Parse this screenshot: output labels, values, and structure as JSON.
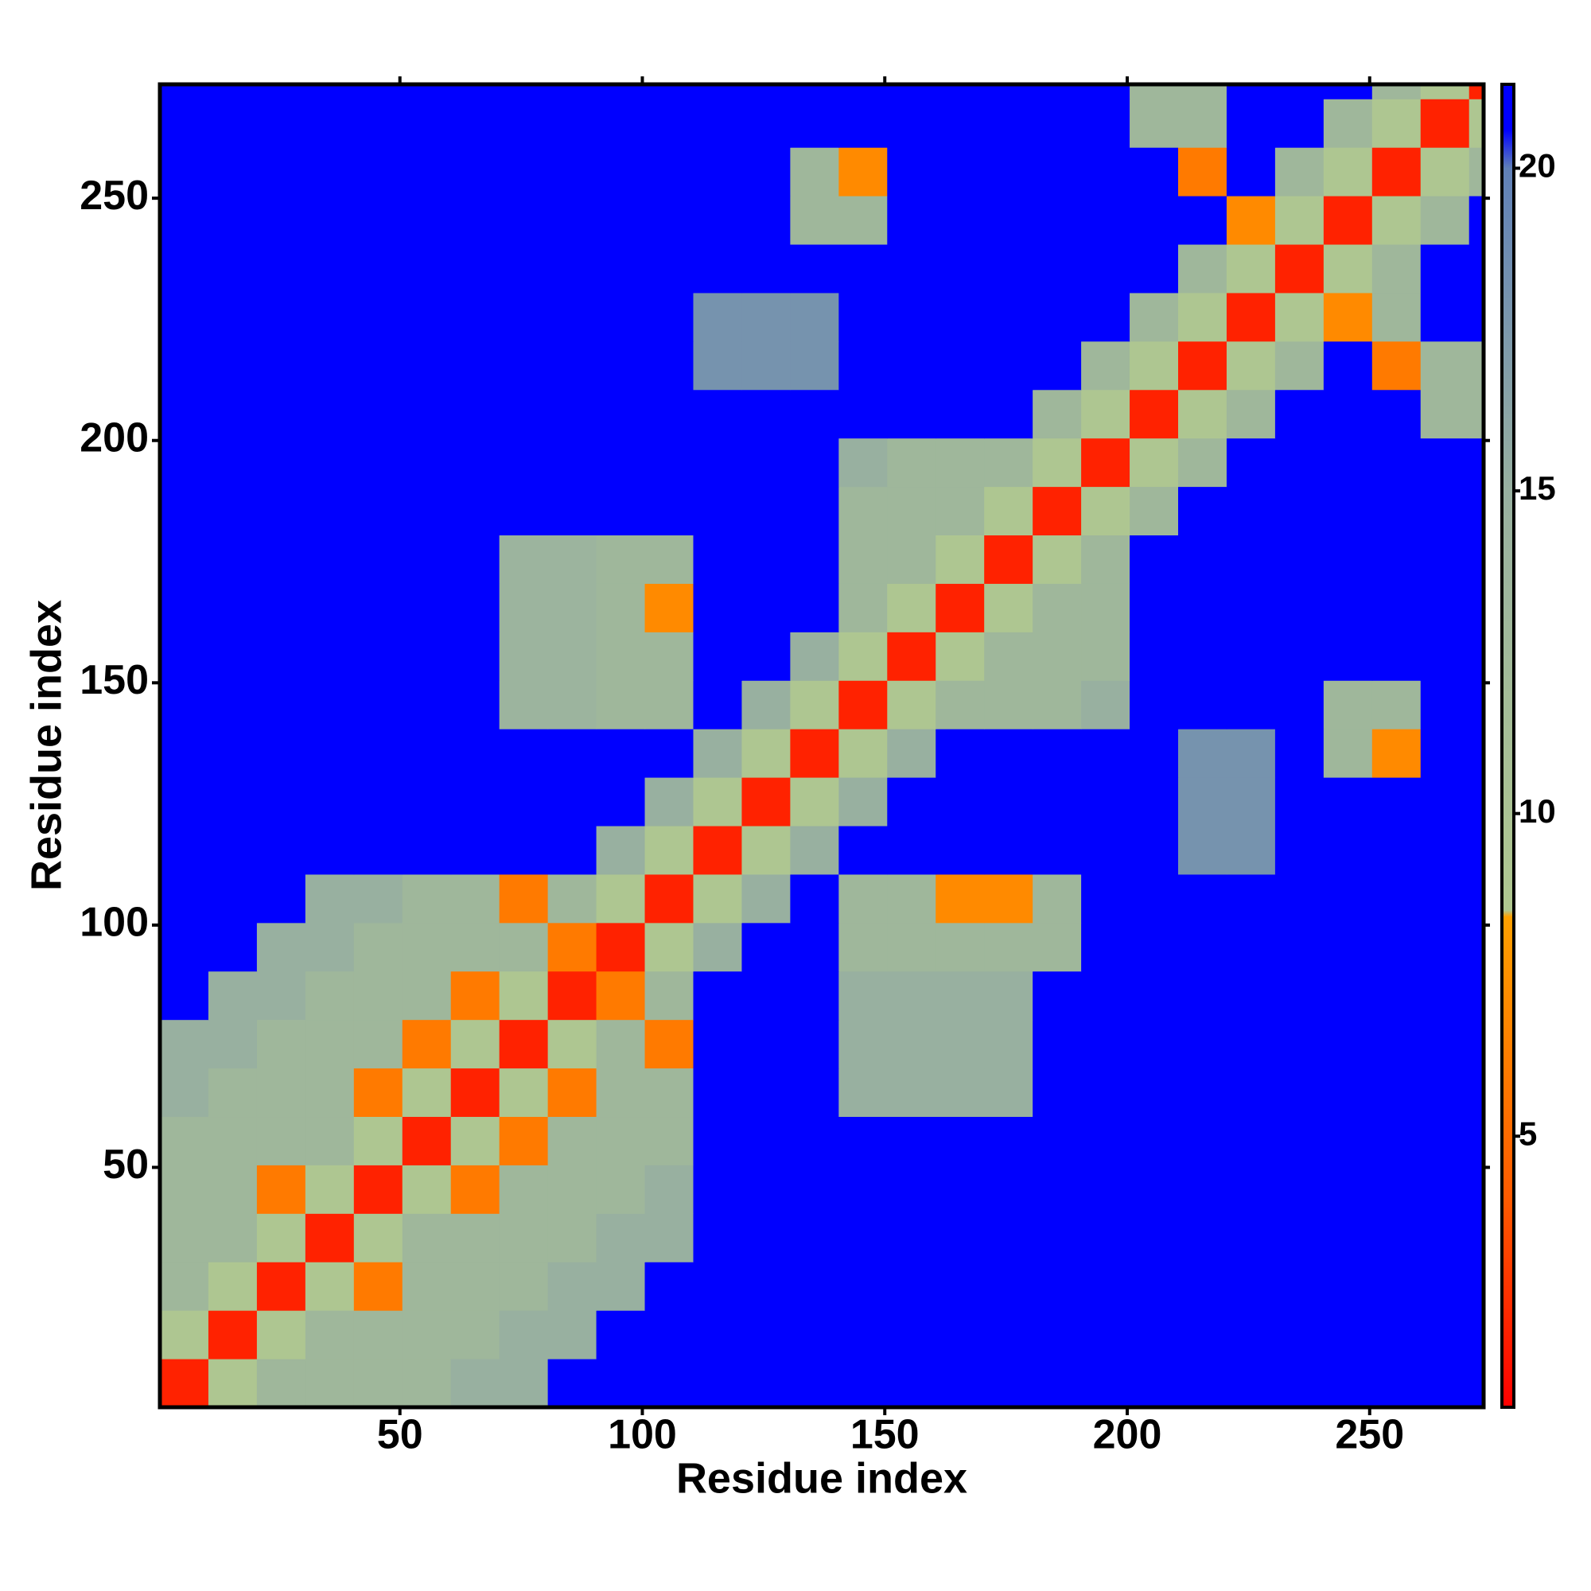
{
  "chart_data": {
    "type": "heatmap",
    "xlabel": "Residue index",
    "ylabel": "Residue index",
    "xlim": [
      0.5,
      273.5
    ],
    "ylim": [
      0.5,
      273.5
    ],
    "xticks": [
      50,
      100,
      150,
      200,
      250
    ],
    "yticks": [
      50,
      100,
      150,
      200,
      250
    ],
    "zlim": [
      0.8,
      21.3
    ],
    "zticks": [
      5,
      10,
      15,
      20
    ],
    "colorscale": [
      [
        0.8,
        "#ff0000"
      ],
      [
        4,
        "#ff5a00"
      ],
      [
        8.4,
        "#ffa000"
      ],
      [
        8.5,
        "#b0c890"
      ],
      [
        15,
        "#98b0a0"
      ],
      [
        20,
        "#6080b8"
      ],
      [
        20.6,
        "#0000ff"
      ],
      [
        21.3,
        "#0000ff"
      ]
    ],
    "xbins": [
      0.5,
      10.5,
      20.5,
      30.5,
      40.5,
      50.5,
      60.5,
      70.5,
      80.5,
      90.5,
      100.5,
      110.5,
      120.5,
      130.5,
      140.5,
      150.5,
      160.5,
      170.5,
      180.5,
      190.5,
      200.5,
      210.5,
      220.5,
      230.5,
      240.5,
      250.5,
      260.5,
      270.5,
      273.5
    ],
    "ybins": [
      0.5,
      10.5,
      20.5,
      30.5,
      40.5,
      50.5,
      60.5,
      70.5,
      80.5,
      90.5,
      100.5,
      110.5,
      120.5,
      130.5,
      140.5,
      150.5,
      160.5,
      170.5,
      180.5,
      190.5,
      200.5,
      210.5,
      220.5,
      230.5,
      240.5,
      250.5,
      260.5,
      270.5,
      273.5
    ],
    "z": [
      [
        2,
        9,
        13,
        13,
        13,
        13,
        15,
        15,
        21,
        21,
        21,
        21,
        21,
        21,
        21,
        21,
        21,
        21,
        21,
        21,
        21,
        21,
        21,
        21,
        21,
        21,
        21,
        21
      ],
      [
        9,
        2,
        9,
        13,
        13,
        13,
        13,
        15,
        15,
        21,
        21,
        21,
        21,
        21,
        21,
        21,
        21,
        21,
        21,
        21,
        21,
        21,
        21,
        21,
        21,
        21,
        21,
        21
      ],
      [
        13,
        9,
        2,
        9,
        6,
        13,
        13,
        13,
        15,
        15,
        21,
        21,
        21,
        21,
        21,
        21,
        21,
        21,
        21,
        21,
        21,
        21,
        21,
        21,
        21,
        21,
        21,
        21
      ],
      [
        13,
        13,
        9,
        2,
        9,
        13,
        13,
        13,
        13,
        15,
        15,
        21,
        21,
        21,
        21,
        21,
        21,
        21,
        21,
        21,
        21,
        21,
        21,
        21,
        21,
        21,
        21,
        21
      ],
      [
        13,
        13,
        6,
        9,
        2,
        9,
        6,
        13,
        13,
        13,
        15,
        21,
        21,
        21,
        21,
        21,
        21,
        21,
        21,
        21,
        21,
        21,
        21,
        21,
        21,
        21,
        21,
        21
      ],
      [
        13,
        13,
        13,
        13,
        9,
        2,
        9,
        6,
        13,
        13,
        13,
        21,
        21,
        21,
        21,
        21,
        21,
        21,
        21,
        21,
        21,
        21,
        21,
        21,
        21,
        21,
        21,
        21
      ],
      [
        15,
        13,
        13,
        13,
        6,
        9,
        2,
        9,
        6,
        13,
        13,
        21,
        21,
        21,
        15,
        15,
        15,
        15,
        21,
        21,
        21,
        21,
        21,
        21,
        21,
        21,
        21,
        21
      ],
      [
        15,
        15,
        13,
        13,
        13,
        6,
        9,
        2,
        9,
        13,
        6,
        21,
        21,
        21,
        15,
        15,
        15,
        15,
        21,
        21,
        21,
        21,
        21,
        21,
        21,
        21,
        21,
        21
      ],
      [
        21,
        15,
        15,
        13,
        13,
        13,
        6,
        9,
        2,
        6,
        13,
        21,
        21,
        21,
        15,
        15,
        15,
        15,
        21,
        21,
        21,
        21,
        21,
        21,
        21,
        21,
        21,
        21
      ],
      [
        21,
        21,
        15,
        15,
        13,
        13,
        13,
        13,
        6,
        2,
        9,
        15,
        21,
        21,
        13,
        13,
        13,
        13,
        13,
        21,
        21,
        21,
        21,
        21,
        21,
        21,
        21,
        21
      ],
      [
        21,
        21,
        21,
        15,
        15,
        13,
        13,
        6,
        13,
        9,
        2,
        9,
        15,
        21,
        13,
        13,
        7,
        7,
        13,
        21,
        21,
        21,
        21,
        21,
        21,
        21,
        21,
        21
      ],
      [
        21,
        21,
        21,
        21,
        21,
        21,
        21,
        21,
        21,
        15,
        9,
        2,
        9,
        15,
        21,
        21,
        21,
        21,
        21,
        21,
        21,
        18,
        18,
        21,
        21,
        21,
        21,
        21
      ],
      [
        21,
        21,
        21,
        21,
        21,
        21,
        21,
        21,
        21,
        21,
        15,
        9,
        2,
        9,
        15,
        21,
        21,
        21,
        21,
        21,
        21,
        18,
        18,
        21,
        21,
        21,
        21,
        21
      ],
      [
        21,
        21,
        21,
        21,
        21,
        21,
        21,
        21,
        21,
        21,
        21,
        15,
        9,
        2,
        9,
        15,
        21,
        21,
        21,
        21,
        21,
        18,
        18,
        21,
        13,
        7,
        21,
        21
      ],
      [
        21,
        21,
        21,
        21,
        21,
        21,
        21,
        14,
        14,
        13,
        13,
        21,
        15,
        9,
        2,
        9,
        13,
        13,
        13,
        15,
        21,
        21,
        21,
        21,
        13,
        13,
        21,
        21
      ],
      [
        21,
        21,
        21,
        21,
        21,
        21,
        21,
        14,
        14,
        13,
        13,
        21,
        21,
        15,
        9,
        2,
        9,
        13,
        13,
        13,
        21,
        21,
        21,
        21,
        21,
        21,
        21,
        21
      ],
      [
        21,
        21,
        21,
        21,
        21,
        21,
        21,
        14,
        14,
        13,
        7,
        21,
        21,
        21,
        13,
        9,
        2,
        9,
        13,
        13,
        21,
        21,
        21,
        21,
        21,
        21,
        21,
        21
      ],
      [
        21,
        21,
        21,
        21,
        21,
        21,
        21,
        14,
        14,
        13,
        13,
        21,
        21,
        21,
        13,
        13,
        9,
        2,
        9,
        13,
        21,
        21,
        21,
        21,
        21,
        21,
        21,
        21
      ],
      [
        21,
        21,
        21,
        21,
        21,
        21,
        21,
        21,
        21,
        21,
        21,
        21,
        21,
        21,
        13,
        13,
        13,
        9,
        2,
        9,
        13,
        21,
        21,
        21,
        21,
        21,
        21,
        21
      ],
      [
        21,
        21,
        21,
        21,
        21,
        21,
        21,
        21,
        21,
        21,
        21,
        21,
        21,
        21,
        15,
        13,
        13,
        13,
        9,
        2,
        9,
        13,
        21,
        21,
        21,
        21,
        21,
        21
      ],
      [
        21,
        21,
        21,
        21,
        21,
        21,
        21,
        21,
        21,
        21,
        21,
        21,
        21,
        21,
        21,
        21,
        21,
        21,
        13,
        9,
        2,
        9,
        13,
        21,
        21,
        21,
        13,
        13
      ],
      [
        21,
        21,
        21,
        21,
        21,
        21,
        21,
        21,
        21,
        21,
        21,
        18,
        18,
        18,
        21,
        21,
        21,
        21,
        21,
        13,
        9,
        2,
        9,
        13,
        21,
        6,
        13,
        13
      ],
      [
        21,
        21,
        21,
        21,
        21,
        21,
        21,
        21,
        21,
        21,
        21,
        18,
        18,
        18,
        21,
        21,
        21,
        21,
        21,
        21,
        13,
        9,
        2,
        9,
        7,
        13,
        21,
        21
      ],
      [
        21,
        21,
        21,
        21,
        21,
        21,
        21,
        21,
        21,
        21,
        21,
        21,
        21,
        21,
        21,
        21,
        21,
        21,
        21,
        21,
        21,
        13,
        9,
        2,
        9,
        13,
        21,
        21
      ],
      [
        21,
        21,
        21,
        21,
        21,
        21,
        21,
        21,
        21,
        21,
        21,
        21,
        21,
        13,
        13,
        21,
        21,
        21,
        21,
        21,
        21,
        21,
        7,
        9,
        2,
        9,
        13,
        21
      ],
      [
        21,
        21,
        21,
        21,
        21,
        21,
        21,
        21,
        21,
        21,
        21,
        21,
        21,
        13,
        7,
        21,
        21,
        21,
        21,
        21,
        21,
        6,
        21,
        13,
        9,
        2,
        9,
        13
      ],
      [
        21,
        21,
        21,
        21,
        21,
        21,
        21,
        21,
        21,
        21,
        21,
        21,
        21,
        21,
        21,
        21,
        21,
        21,
        21,
        21,
        13,
        13,
        21,
        21,
        13,
        9,
        2,
        9
      ],
      [
        21,
        21,
        21,
        21,
        21,
        21,
        21,
        21,
        21,
        21,
        21,
        21,
        21,
        21,
        21,
        21,
        21,
        21,
        21,
        21,
        13,
        13,
        21,
        21,
        21,
        13,
        9,
        2
      ]
    ]
  }
}
